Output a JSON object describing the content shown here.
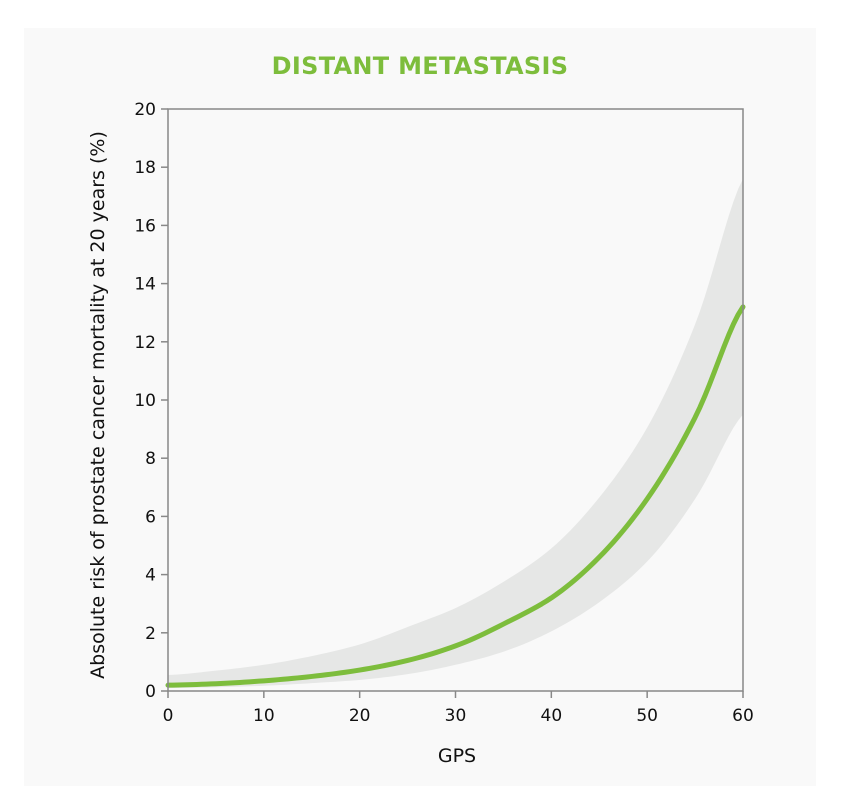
{
  "chart_data": {
    "type": "line",
    "title": "DISTANT METASTASIS",
    "xlabel": "GPS",
    "ylabel": "Absolute risk of prostate cancer mortality at 20 years (%)",
    "xlim": [
      0,
      60
    ],
    "ylim": [
      0,
      20
    ],
    "x_ticks": [
      "0",
      "10",
      "20",
      "30",
      "40",
      "50",
      "60"
    ],
    "y_ticks": [
      "0",
      "2",
      "4",
      "6",
      "8",
      "10",
      "12",
      "14",
      "16",
      "18",
      "20"
    ],
    "grid": false,
    "series": [
      {
        "x": [
          0,
          5,
          10,
          15,
          20,
          25,
          30,
          35,
          40,
          45,
          50,
          55,
          60
        ],
        "values": [
          0.2,
          0.25,
          0.35,
          0.5,
          0.72,
          1.05,
          1.55,
          2.3,
          3.2,
          4.6,
          6.6,
          9.4,
          13.2
        ],
        "ci_lower": [
          0.1,
          0.13,
          0.18,
          0.27,
          0.38,
          0.58,
          0.9,
          1.35,
          2.05,
          3.05,
          4.45,
          6.6,
          9.5
        ],
        "ci_upper": [
          0.55,
          0.7,
          0.9,
          1.2,
          1.6,
          2.2,
          2.85,
          3.75,
          4.9,
          6.65,
          9.05,
          12.6,
          17.6
        ]
      }
    ],
    "colors": {
      "line": "#7dbd3c",
      "band": "#e6e7e6",
      "axis": "#888888",
      "title": "#7dbd3c"
    }
  }
}
